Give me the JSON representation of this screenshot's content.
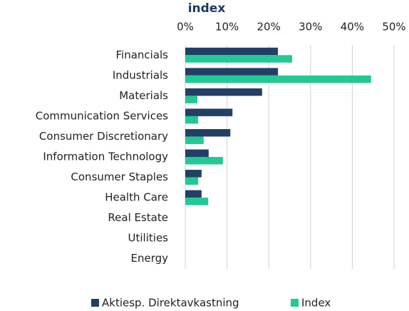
{
  "chart_data": {
    "type": "barh",
    "title": "index",
    "categories": [
      "Financials",
      "Industrials",
      "Materials",
      "Communication Services",
      "Consumer Discretionary",
      "Information Technology",
      "Consumer Staples",
      "Health Care",
      "Real Estate",
      "Utilities",
      "Energy"
    ],
    "series": [
      {
        "name": "Aktiesp. Direktavkastning",
        "color": "#243f66",
        "values": [
          22.2,
          22.2,
          18.4,
          11.3,
          10.8,
          5.6,
          3.9,
          3.9,
          0,
          0,
          0
        ]
      },
      {
        "name": "Index",
        "color": "#22c994",
        "values": [
          25.6,
          44.5,
          2.9,
          3.1,
          4.4,
          9.0,
          3.1,
          5.5,
          0,
          0,
          0
        ]
      }
    ],
    "xlim": [
      0,
      50
    ],
    "xticks": [
      {
        "value": 0,
        "label": "0%"
      },
      {
        "value": 10,
        "label": "10%"
      },
      {
        "value": 20,
        "label": "20%"
      },
      {
        "value": 30,
        "label": "30%"
      },
      {
        "value": 40,
        "label": "40%"
      },
      {
        "value": 50,
        "label": "50%"
      }
    ],
    "grid": true,
    "legend": "bottom"
  }
}
